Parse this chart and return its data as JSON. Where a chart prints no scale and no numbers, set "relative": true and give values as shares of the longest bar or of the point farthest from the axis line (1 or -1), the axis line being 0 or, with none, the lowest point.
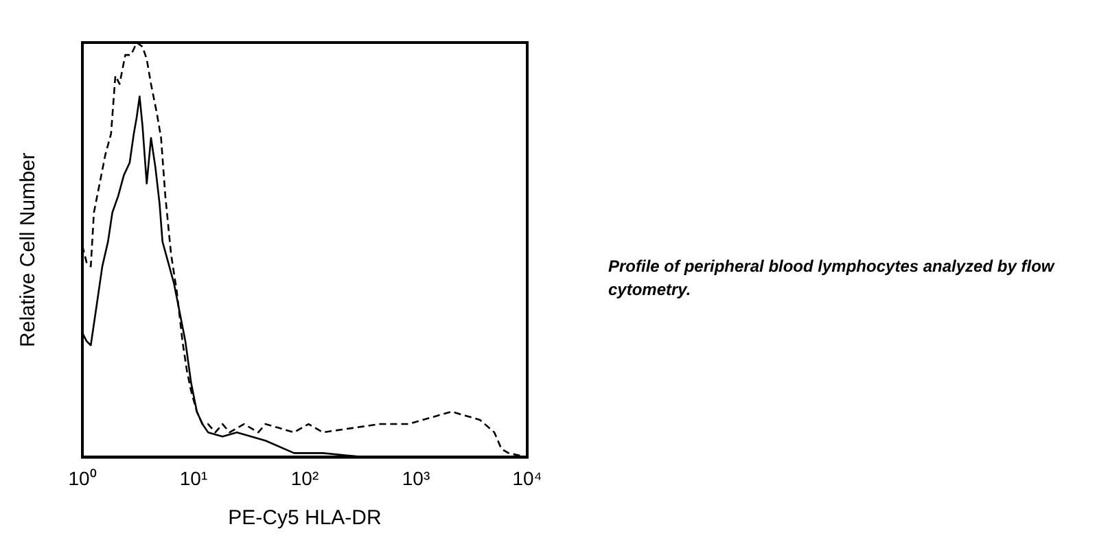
{
  "chart_data": {
    "type": "line",
    "xlabel": "PE-Cy5 HLA-DR",
    "ylabel": "Relative Cell Number",
    "relative": true,
    "log": "x",
    "xlim": [
      1,
      10000
    ],
    "xticks": [
      {
        "value": 1,
        "label": "10⁰"
      },
      {
        "value": 10,
        "label": "10¹"
      },
      {
        "value": 100,
        "label": "10²"
      },
      {
        "value": 1000,
        "label": "10³"
      },
      {
        "value": 10000,
        "label": "10⁴"
      }
    ],
    "grid": false,
    "legend": false,
    "marker": "none",
    "annotations": [
      "Profile of peripheral blood lymphocytes analyzed by flow cytometry."
    ],
    "series": [
      {
        "color": "#000000",
        "line_style": "dashed",
        "x": [
          1,
          1.09,
          1.19,
          1.27,
          1.43,
          1.61,
          1.81,
          1.98,
          2.16,
          2.43,
          2.74,
          3.08,
          3.47,
          3.79,
          4.14,
          4.67,
          5.1,
          5.57,
          6.27,
          7.06,
          7.94,
          8.69,
          9.49,
          10.7,
          12,
          13.5,
          15.7,
          18.2,
          21.1,
          28.4,
          38.2,
          44.3,
          59.6,
          80.1,
          108,
          145,
          262,
          473,
          855,
          1150,
          1550,
          2080,
          2800,
          3760,
          5060,
          5860,
          6800,
          10000
        ],
        "values": [
          0.51,
          0.47,
          0.46,
          0.59,
          0.66,
          0.73,
          0.78,
          0.92,
          0.9,
          0.97,
          0.97,
          1,
          0.99,
          0.96,
          0.9,
          0.83,
          0.77,
          0.63,
          0.49,
          0.4,
          0.28,
          0.21,
          0.16,
          0.11,
          0.08,
          0.08,
          0.06,
          0.08,
          0.06,
          0.08,
          0.06,
          0.08,
          0.07,
          0.06,
          0.08,
          0.06,
          0.07,
          0.08,
          0.08,
          0.09,
          0.1,
          0.11,
          0.1,
          0.09,
          0.06,
          0.02,
          0.01,
          0
        ]
      },
      {
        "color": "#000000",
        "line_style": "solid",
        "x": [
          1,
          1.09,
          1.19,
          1.35,
          1.51,
          1.7,
          1.86,
          2.1,
          2.36,
          2.66,
          2.9,
          3.08,
          3.27,
          3.47,
          3.79,
          4.14,
          4.53,
          4.95,
          5.25,
          5.91,
          6.65,
          7.49,
          8.43,
          9.49,
          10.7,
          12,
          13.5,
          18.2,
          24.5,
          44.3,
          80.1,
          145,
          352,
          10000
        ],
        "values": [
          0.3,
          0.28,
          0.27,
          0.37,
          0.46,
          0.52,
          0.59,
          0.63,
          0.68,
          0.71,
          0.78,
          0.82,
          0.87,
          0.8,
          0.66,
          0.77,
          0.7,
          0.61,
          0.52,
          0.47,
          0.42,
          0.35,
          0.28,
          0.18,
          0.11,
          0.08,
          0.06,
          0.05,
          0.06,
          0.04,
          0.01,
          0.01,
          0,
          0
        ]
      }
    ]
  }
}
